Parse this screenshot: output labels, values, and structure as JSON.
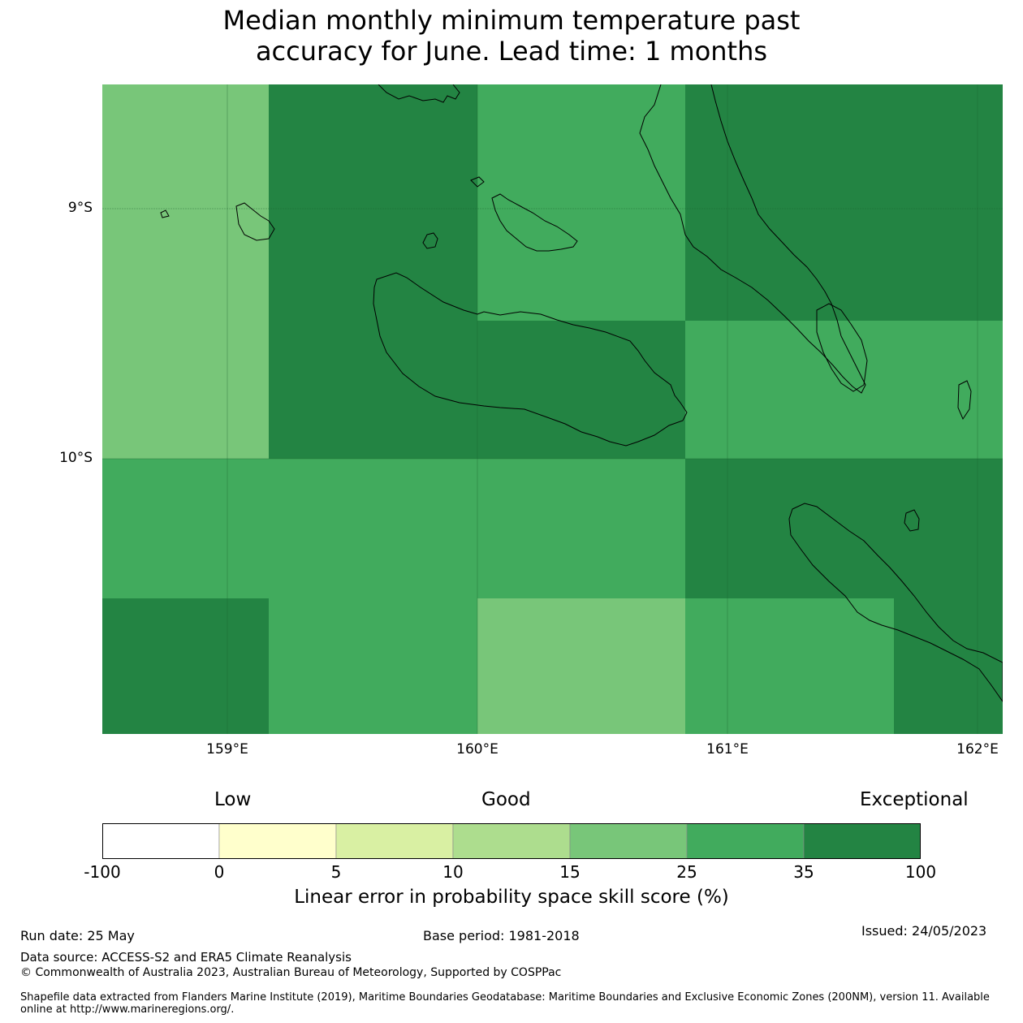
{
  "title_line1": "Median monthly minimum temperature past",
  "title_line2": "accuracy for June. Lead time: 1 months",
  "map": {
    "lon_range": [
      158.5,
      162.1
    ],
    "lat_range": [
      -11.1,
      -8.5
    ],
    "lat_ticks": [
      "9°S",
      "10°S"
    ],
    "lon_ticks": [
      "159°E",
      "160°E",
      "161°E",
      "162°E"
    ],
    "colors": {
      "exceptional": "#238443",
      "good_high": "#41ab5d",
      "good": "#78c679"
    }
  },
  "colorbar": {
    "words": [
      "Low",
      "Good",
      "Exceptional"
    ],
    "ticks": [
      "-100",
      "0",
      "5",
      "10",
      "15",
      "25",
      "35",
      "100"
    ],
    "colors": [
      "#ffffff",
      "#ffffcc",
      "#d9f0a3",
      "#addd8e",
      "#78c679",
      "#41ab5d",
      "#238443"
    ],
    "label": "Linear error in probability space skill score (%)"
  },
  "footer": {
    "run_date": "Run date: 25 May",
    "base_period": "Base period: 1981-2018",
    "issued": "Issued: 24/05/2023",
    "data_source": "Data source: ACCESS-S2 and ERA5 Climate Reanalysis",
    "copyright": "© Commonwealth of Australia 2023, Australian Bureau of Meteorology, Supported by COSPPac",
    "shapefile": "Shapefile data extracted from Flanders Marine Institute (2019), Maritime Boundaries Geodatabase: Maritime Boundaries and Exclusive Economic Zones (200NM), version 11. Available online at http://www.marineregions.org/."
  }
}
